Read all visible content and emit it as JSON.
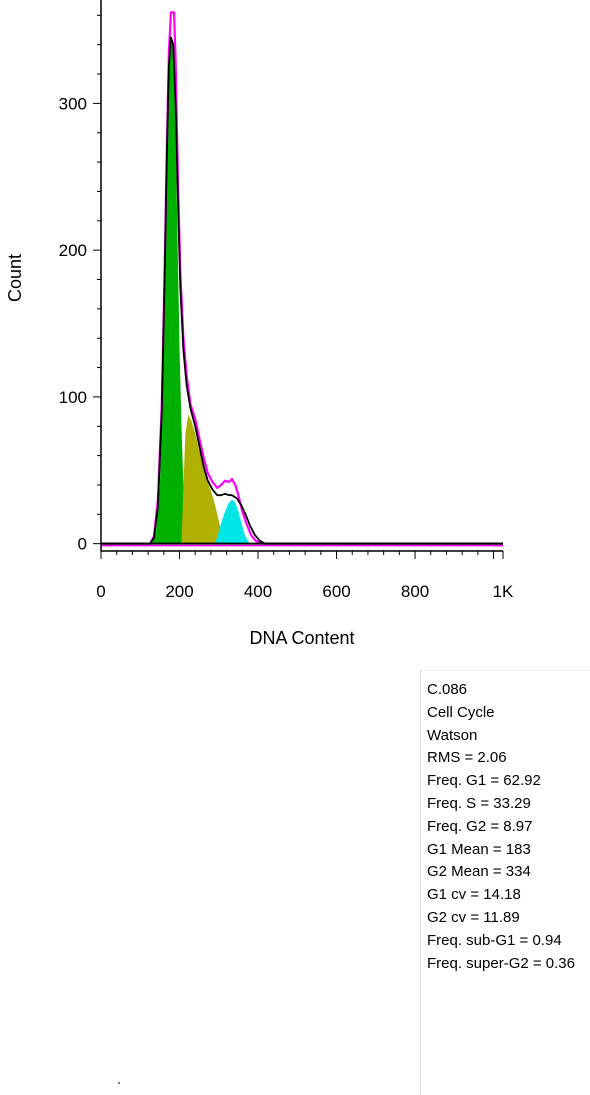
{
  "chart_data": {
    "type": "area",
    "xlabel": "DNA Content",
    "ylabel": "Count",
    "xlim": [
      0,
      1024
    ],
    "ylim": [
      -5,
      365
    ],
    "x_ticks": [
      {
        "value": 0,
        "label": "0"
      },
      {
        "value": 200,
        "label": "200"
      },
      {
        "value": 400,
        "label": "400"
      },
      {
        "value": 600,
        "label": "600"
      },
      {
        "value": 800,
        "label": "800"
      },
      {
        "value": 1024,
        "label": "1K"
      }
    ],
    "y_ticks": [
      {
        "value": 0,
        "label": "0"
      },
      {
        "value": 100,
        "label": "100"
      },
      {
        "value": 200,
        "label": "200"
      },
      {
        "value": 300,
        "label": "300"
      }
    ],
    "series": [
      {
        "color": "#ff00ff",
        "points": [
          [
            0,
            0
          ],
          [
            125,
            0
          ],
          [
            135,
            5
          ],
          [
            145,
            30
          ],
          [
            155,
            95
          ],
          [
            162,
            185
          ],
          [
            168,
            275
          ],
          [
            173,
            335
          ],
          [
            178,
            362
          ],
          [
            186,
            362
          ],
          [
            190,
            330
          ],
          [
            196,
            250
          ],
          [
            202,
            185
          ],
          [
            210,
            140
          ],
          [
            218,
            115
          ],
          [
            228,
            95
          ],
          [
            240,
            85
          ],
          [
            252,
            70
          ],
          [
            262,
            58
          ],
          [
            272,
            48
          ],
          [
            284,
            42
          ],
          [
            296,
            38
          ],
          [
            306,
            40
          ],
          [
            316,
            43
          ],
          [
            326,
            42
          ],
          [
            334,
            44
          ],
          [
            342,
            40
          ],
          [
            350,
            33
          ],
          [
            360,
            22
          ],
          [
            370,
            14
          ],
          [
            382,
            6
          ],
          [
            394,
            2
          ],
          [
            410,
            0
          ],
          [
            1024,
            0
          ]
        ]
      },
      {
        "color": "#000000",
        "points": [
          [
            0,
            0
          ],
          [
            125,
            0
          ],
          [
            135,
            4
          ],
          [
            145,
            25
          ],
          [
            155,
            90
          ],
          [
            162,
            180
          ],
          [
            168,
            270
          ],
          [
            173,
            325
          ],
          [
            178,
            345
          ],
          [
            184,
            340
          ],
          [
            190,
            300
          ],
          [
            196,
            235
          ],
          [
            202,
            175
          ],
          [
            210,
            132
          ],
          [
            218,
            108
          ],
          [
            228,
            92
          ],
          [
            240,
            80
          ],
          [
            252,
            65
          ],
          [
            262,
            52
          ],
          [
            272,
            43
          ],
          [
            284,
            37
          ],
          [
            296,
            33
          ],
          [
            306,
            33
          ],
          [
            316,
            34
          ],
          [
            326,
            33
          ],
          [
            334,
            33
          ],
          [
            346,
            31
          ],
          [
            358,
            26
          ],
          [
            368,
            20
          ],
          [
            380,
            12
          ],
          [
            392,
            6
          ],
          [
            404,
            2
          ],
          [
            418,
            0
          ],
          [
            1024,
            0
          ]
        ]
      }
    ],
    "components": [
      {
        "name": "G1",
        "color": "#00b000",
        "points": [
          [
            130,
            0
          ],
          [
            140,
            8
          ],
          [
            150,
            40
          ],
          [
            158,
            110
          ],
          [
            165,
            210
          ],
          [
            170,
            290
          ],
          [
            176,
            340
          ],
          [
            180,
            345
          ],
          [
            185,
            330
          ],
          [
            190,
            280
          ],
          [
            195,
            205
          ],
          [
            200,
            135
          ],
          [
            205,
            80
          ],
          [
            210,
            40
          ],
          [
            215,
            15
          ],
          [
            222,
            3
          ],
          [
            230,
            0
          ]
        ]
      },
      {
        "name": "S",
        "color": "#b0b000",
        "points": [
          [
            205,
            0
          ],
          [
            210,
            40
          ],
          [
            215,
            75
          ],
          [
            222,
            88
          ],
          [
            230,
            84
          ],
          [
            240,
            75
          ],
          [
            250,
            64
          ],
          [
            260,
            54
          ],
          [
            270,
            44
          ],
          [
            280,
            36
          ],
          [
            290,
            27
          ],
          [
            298,
            18
          ],
          [
            306,
            9
          ],
          [
            312,
            2
          ],
          [
            316,
            0
          ]
        ]
      },
      {
        "name": "G2",
        "color": "#00e6e6",
        "points": [
          [
            290,
            0
          ],
          [
            298,
            6
          ],
          [
            306,
            14
          ],
          [
            316,
            22
          ],
          [
            326,
            28
          ],
          [
            334,
            30
          ],
          [
            342,
            28
          ],
          [
            350,
            22
          ],
          [
            358,
            14
          ],
          [
            366,
            6
          ],
          [
            374,
            2
          ],
          [
            380,
            0
          ]
        ]
      }
    ]
  },
  "stats": [
    "C.086",
    "Cell Cycle",
    "Watson",
    "RMS  = 2.06",
    "Freq. G1  = 62.92",
    "Freq. S = 33.29",
    "Freq. G2 = 8.97",
    "G1 Mean  = 183",
    "G2 Mean  = 334",
    "G1 cv  = 14.18",
    "G2 cv  = 11.89",
    "Freq. sub-G1  = 0.94",
    "Freq. super-G2 = 0.36"
  ]
}
